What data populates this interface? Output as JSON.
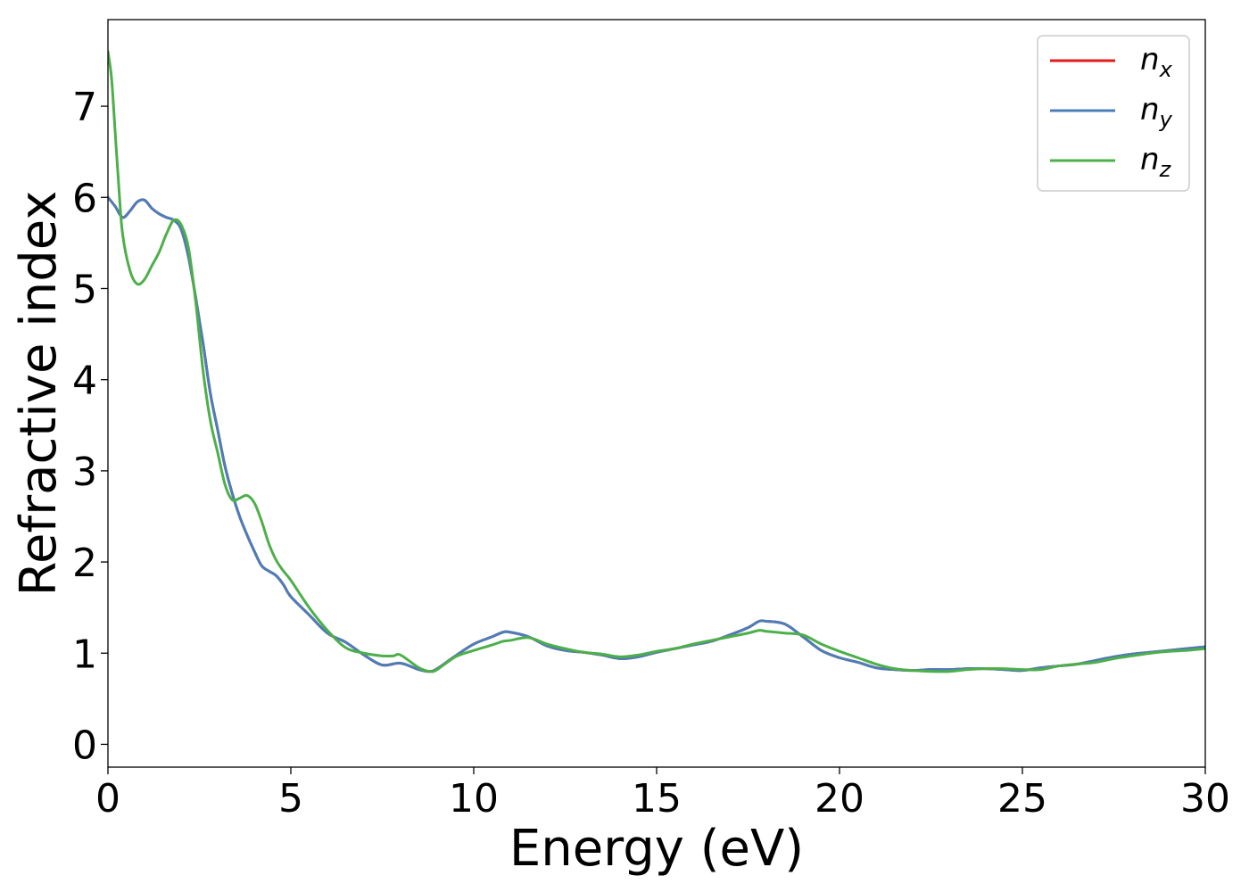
{
  "chart_data": {
    "type": "line",
    "xlabel": "Energy (eV)",
    "ylabel": "Refractive index",
    "xlim": [
      0,
      30
    ],
    "ylim": [
      -0.25,
      7.95
    ],
    "xticks": [
      0,
      5,
      10,
      15,
      20,
      25,
      30
    ],
    "yticks": [
      0,
      1,
      2,
      3,
      4,
      5,
      6,
      7
    ],
    "grid": false,
    "legend_position": "top-right",
    "series": [
      {
        "name": "n_x",
        "label_base": "n",
        "label_sub": "x",
        "color": "#e41a1c",
        "x": [
          0,
          0.2,
          0.4,
          0.6,
          0.8,
          1.0,
          1.2,
          1.4,
          1.6,
          1.8,
          2.0,
          2.2,
          2.4,
          2.6,
          2.8,
          3.0,
          3.2,
          3.4,
          3.6,
          3.8,
          4.0,
          4.2,
          4.4,
          4.6,
          4.8,
          5.0,
          5.5,
          6.0,
          6.5,
          7.0,
          7.5,
          8.0,
          8.5,
          8.8,
          9.0,
          9.5,
          10.0,
          10.5,
          10.8,
          11.0,
          11.5,
          12.0,
          12.5,
          13.0,
          13.5,
          14.0,
          14.5,
          15.0,
          15.5,
          16.0,
          16.5,
          17.0,
          17.5,
          17.8,
          18.0,
          18.5,
          19.0,
          19.5,
          20.0,
          20.5,
          21.0,
          21.5,
          22.0,
          22.5,
          23.0,
          23.5,
          24.0,
          24.5,
          25.0,
          25.5,
          26.0,
          26.5,
          27.0,
          27.5,
          28.0,
          28.5,
          29.0,
          29.5,
          30.0
        ],
        "y": [
          6.0,
          5.9,
          5.78,
          5.85,
          5.95,
          5.97,
          5.88,
          5.82,
          5.78,
          5.75,
          5.65,
          5.35,
          4.9,
          4.4,
          3.85,
          3.45,
          3.05,
          2.75,
          2.5,
          2.3,
          2.12,
          1.96,
          1.9,
          1.85,
          1.75,
          1.62,
          1.42,
          1.22,
          1.12,
          0.98,
          0.87,
          0.89,
          0.82,
          0.8,
          0.83,
          0.97,
          1.1,
          1.18,
          1.23,
          1.23,
          1.18,
          1.08,
          1.03,
          1.01,
          0.98,
          0.94,
          0.96,
          1.01,
          1.05,
          1.09,
          1.13,
          1.2,
          1.28,
          1.35,
          1.35,
          1.32,
          1.18,
          1.03,
          0.95,
          0.9,
          0.84,
          0.82,
          0.81,
          0.82,
          0.82,
          0.83,
          0.83,
          0.82,
          0.81,
          0.84,
          0.86,
          0.88,
          0.92,
          0.96,
          0.99,
          1.01,
          1.03,
          1.05,
          1.07
        ]
      },
      {
        "name": "n_y",
        "label_base": "n",
        "label_sub": "y",
        "color": "#4b7eb8",
        "x": [
          0,
          0.2,
          0.4,
          0.6,
          0.8,
          1.0,
          1.2,
          1.4,
          1.6,
          1.8,
          2.0,
          2.2,
          2.4,
          2.6,
          2.8,
          3.0,
          3.2,
          3.4,
          3.6,
          3.8,
          4.0,
          4.2,
          4.4,
          4.6,
          4.8,
          5.0,
          5.5,
          6.0,
          6.5,
          7.0,
          7.5,
          8.0,
          8.5,
          8.8,
          9.0,
          9.5,
          10.0,
          10.5,
          10.8,
          11.0,
          11.5,
          12.0,
          12.5,
          13.0,
          13.5,
          14.0,
          14.5,
          15.0,
          15.5,
          16.0,
          16.5,
          17.0,
          17.5,
          17.8,
          18.0,
          18.5,
          19.0,
          19.5,
          20.0,
          20.5,
          21.0,
          21.5,
          22.0,
          22.5,
          23.0,
          23.5,
          24.0,
          24.5,
          25.0,
          25.5,
          26.0,
          26.5,
          27.0,
          27.5,
          28.0,
          28.5,
          29.0,
          29.5,
          30.0
        ],
        "y": [
          6.0,
          5.9,
          5.78,
          5.85,
          5.95,
          5.97,
          5.88,
          5.82,
          5.78,
          5.75,
          5.65,
          5.35,
          4.9,
          4.4,
          3.85,
          3.45,
          3.05,
          2.75,
          2.5,
          2.3,
          2.12,
          1.96,
          1.9,
          1.85,
          1.75,
          1.62,
          1.42,
          1.22,
          1.12,
          0.98,
          0.87,
          0.89,
          0.82,
          0.8,
          0.83,
          0.97,
          1.1,
          1.18,
          1.23,
          1.23,
          1.18,
          1.08,
          1.03,
          1.01,
          0.98,
          0.94,
          0.96,
          1.01,
          1.05,
          1.09,
          1.13,
          1.2,
          1.28,
          1.35,
          1.35,
          1.32,
          1.18,
          1.03,
          0.95,
          0.9,
          0.84,
          0.82,
          0.81,
          0.82,
          0.82,
          0.83,
          0.83,
          0.82,
          0.81,
          0.84,
          0.86,
          0.88,
          0.92,
          0.96,
          0.99,
          1.01,
          1.03,
          1.05,
          1.07
        ]
      },
      {
        "name": "n_z",
        "label_base": "n",
        "label_sub": "z",
        "color": "#4daf4a",
        "x": [
          0,
          0.1,
          0.2,
          0.3,
          0.4,
          0.6,
          0.8,
          1.0,
          1.2,
          1.4,
          1.6,
          1.8,
          2.0,
          2.2,
          2.4,
          2.6,
          2.8,
          3.0,
          3.2,
          3.4,
          3.6,
          3.8,
          4.0,
          4.2,
          4.4,
          4.6,
          4.8,
          5.0,
          5.5,
          6.0,
          6.5,
          7.0,
          7.5,
          7.8,
          8.0,
          8.5,
          8.8,
          9.0,
          9.5,
          10.0,
          10.5,
          10.8,
          11.0,
          11.5,
          12.0,
          12.5,
          13.0,
          13.5,
          14.0,
          14.5,
          15.0,
          15.5,
          16.0,
          16.5,
          17.0,
          17.5,
          17.8,
          18.0,
          18.5,
          19.0,
          19.5,
          20.0,
          20.5,
          21.0,
          21.5,
          22.0,
          22.5,
          23.0,
          23.5,
          24.0,
          24.5,
          25.0,
          25.5,
          26.0,
          26.5,
          27.0,
          27.5,
          28.0,
          28.5,
          29.0,
          29.5,
          30.0
        ],
        "y": [
          7.6,
          7.3,
          6.7,
          6.1,
          5.6,
          5.2,
          5.05,
          5.1,
          5.25,
          5.4,
          5.6,
          5.75,
          5.7,
          5.45,
          4.85,
          4.1,
          3.55,
          3.2,
          2.85,
          2.68,
          2.7,
          2.73,
          2.65,
          2.45,
          2.2,
          2.02,
          1.9,
          1.8,
          1.5,
          1.25,
          1.06,
          1.0,
          0.97,
          0.97,
          0.98,
          0.84,
          0.8,
          0.82,
          0.96,
          1.03,
          1.09,
          1.13,
          1.14,
          1.17,
          1.1,
          1.05,
          1.01,
          0.99,
          0.96,
          0.98,
          1.02,
          1.05,
          1.1,
          1.14,
          1.18,
          1.22,
          1.25,
          1.24,
          1.22,
          1.2,
          1.1,
          1.02,
          0.95,
          0.88,
          0.83,
          0.81,
          0.8,
          0.8,
          0.82,
          0.83,
          0.83,
          0.82,
          0.82,
          0.86,
          0.88,
          0.9,
          0.94,
          0.97,
          1.0,
          1.02,
          1.03,
          1.05
        ]
      }
    ]
  }
}
